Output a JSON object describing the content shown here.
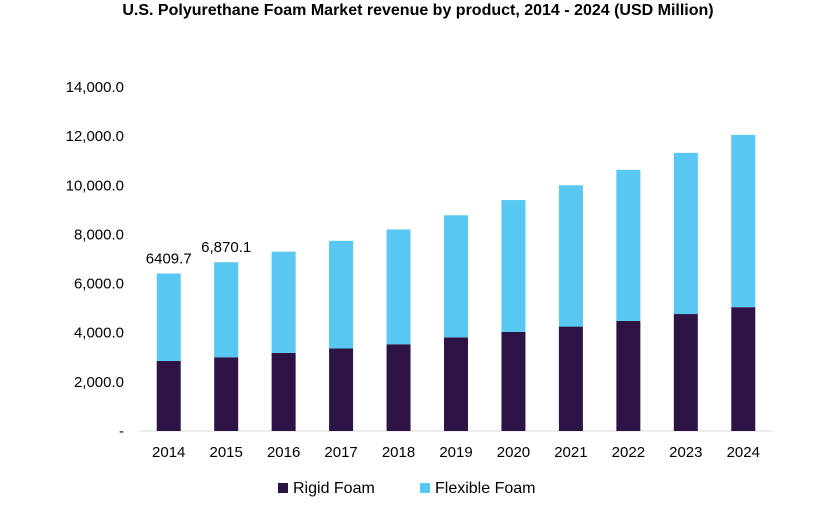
{
  "chart_data": {
    "type": "bar",
    "stacked": true,
    "title": "U.S. Polyurethane Foam Market revenue by product, 2014 - 2024 (USD Million)",
    "xlabel": "",
    "ylabel": "",
    "categories": [
      "2014",
      "2015",
      "2016",
      "2017",
      "2018",
      "2019",
      "2020",
      "2021",
      "2022",
      "2023",
      "2024"
    ],
    "series": [
      {
        "name": "Rigid Foam",
        "color": "#2e1346",
        "values": [
          2850,
          3000,
          3180,
          3360,
          3530,
          3810,
          4030,
          4250,
          4480,
          4760,
          5040
        ]
      },
      {
        "name": "Flexible Foam",
        "color": "#58c8f2",
        "values": [
          3559.7,
          3870.1,
          4120,
          4380,
          4670,
          4970,
          5370,
          5750,
          6150,
          6560,
          7010
        ]
      }
    ],
    "ylim": [
      0,
      14000
    ],
    "yticks": [
      0,
      2000,
      4000,
      6000,
      8000,
      10000,
      12000,
      14000
    ],
    "ytick_labels": [
      "-",
      "2,000.0",
      "4,000.0",
      "6,000.0",
      "8,000.0",
      "10,000.0",
      "12,000.0",
      "14,000.0"
    ],
    "data_labels": [
      {
        "category": "2014",
        "text": "6409.7"
      },
      {
        "category": "2015",
        "text": "6,870.1"
      }
    ],
    "grid": false,
    "legend": "bottom"
  }
}
